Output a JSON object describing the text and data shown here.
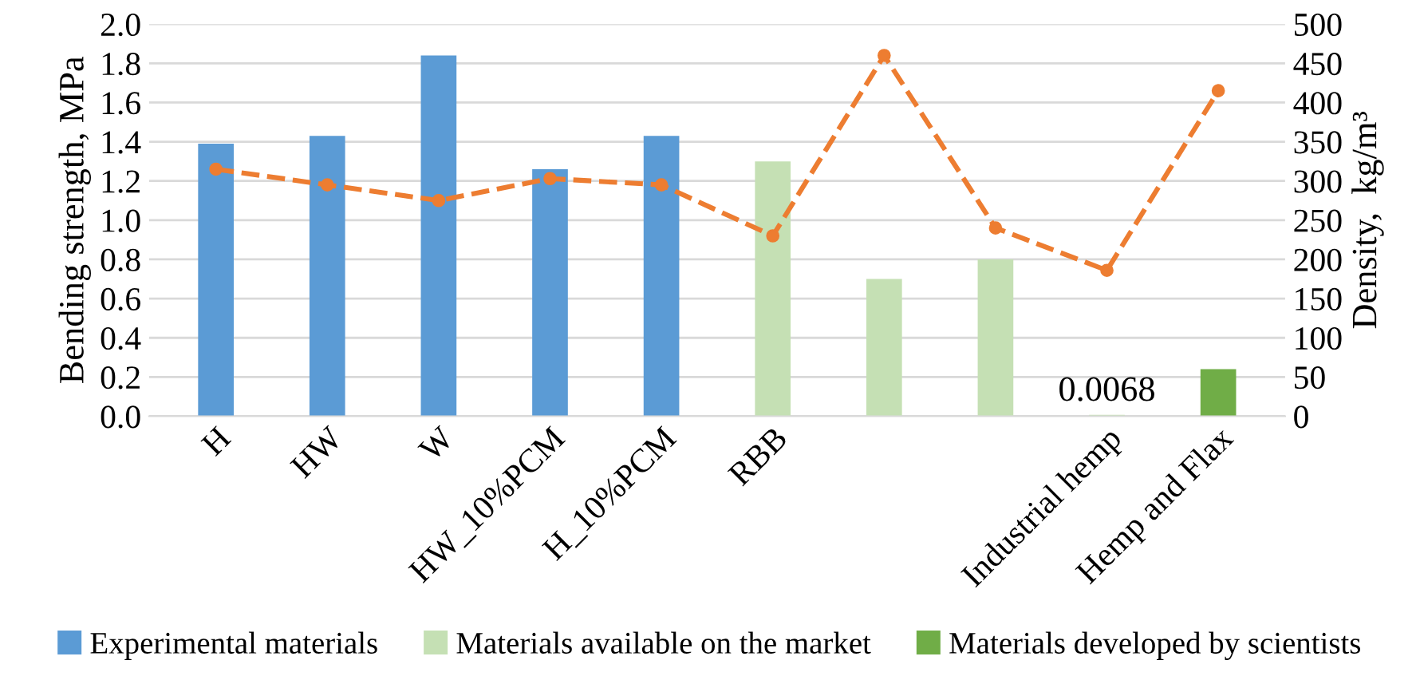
{
  "chart_data": {
    "type": "bar",
    "categories": [
      "H",
      "HW",
      "W",
      "HW_10%PCM",
      "H_10%PCM",
      "RBB",
      null,
      null,
      "Industrial hemp",
      "Hemp and Flax"
    ],
    "ylabel": "Bending strength, MPa",
    "y2label": "Density,  kg/m³",
    "ylim": [
      0,
      2.0
    ],
    "yticks": [
      {
        "value": 0,
        "label": "0.0"
      },
      {
        "value": 0.2,
        "label": "0.2"
      },
      {
        "value": 0.4,
        "label": "0.4"
      },
      {
        "value": 0.6,
        "label": "0.6"
      },
      {
        "value": 0.8,
        "label": "0.8"
      },
      {
        "value": 1.0,
        "label": "1.0"
      },
      {
        "value": 1.2,
        "label": "1.2"
      },
      {
        "value": 1.4,
        "label": "1.4"
      },
      {
        "value": 1.6,
        "label": "1.6"
      },
      {
        "value": 1.8,
        "label": "1.8"
      },
      {
        "value": 2.0,
        "label": "2.0"
      }
    ],
    "y2lim": [
      0,
      500
    ],
    "y2ticks": [
      0,
      50,
      100,
      150,
      200,
      250,
      300,
      350,
      400,
      450,
      500
    ],
    "grid": "y",
    "legend": "bottom",
    "series": [
      {
        "name": "Experimental materials",
        "color": "#5b9bd5",
        "values": [
          1.39,
          1.43,
          1.84,
          1.26,
          1.43,
          null,
          null,
          null,
          null,
          null
        ]
      },
      {
        "name": "Materials available on the market",
        "color": "#c5e0b4",
        "values": [
          null,
          null,
          null,
          null,
          null,
          1.3,
          0.7,
          0.8,
          0.0068,
          null
        ],
        "value_labels": [
          null,
          null,
          null,
          null,
          null,
          null,
          null,
          null,
          "0.0068",
          null
        ]
      },
      {
        "name": "Materials developed by scientists",
        "color": "#70ad47",
        "values": [
          null,
          null,
          null,
          null,
          null,
          null,
          null,
          null,
          null,
          0.24
        ]
      },
      {
        "type": "line",
        "axis": "y2",
        "color": "#ed7d31",
        "marker": "circle",
        "line_style": "dashed",
        "values": [
          315,
          295,
          275,
          303,
          295,
          230,
          460,
          240,
          186,
          415
        ]
      }
    ]
  }
}
